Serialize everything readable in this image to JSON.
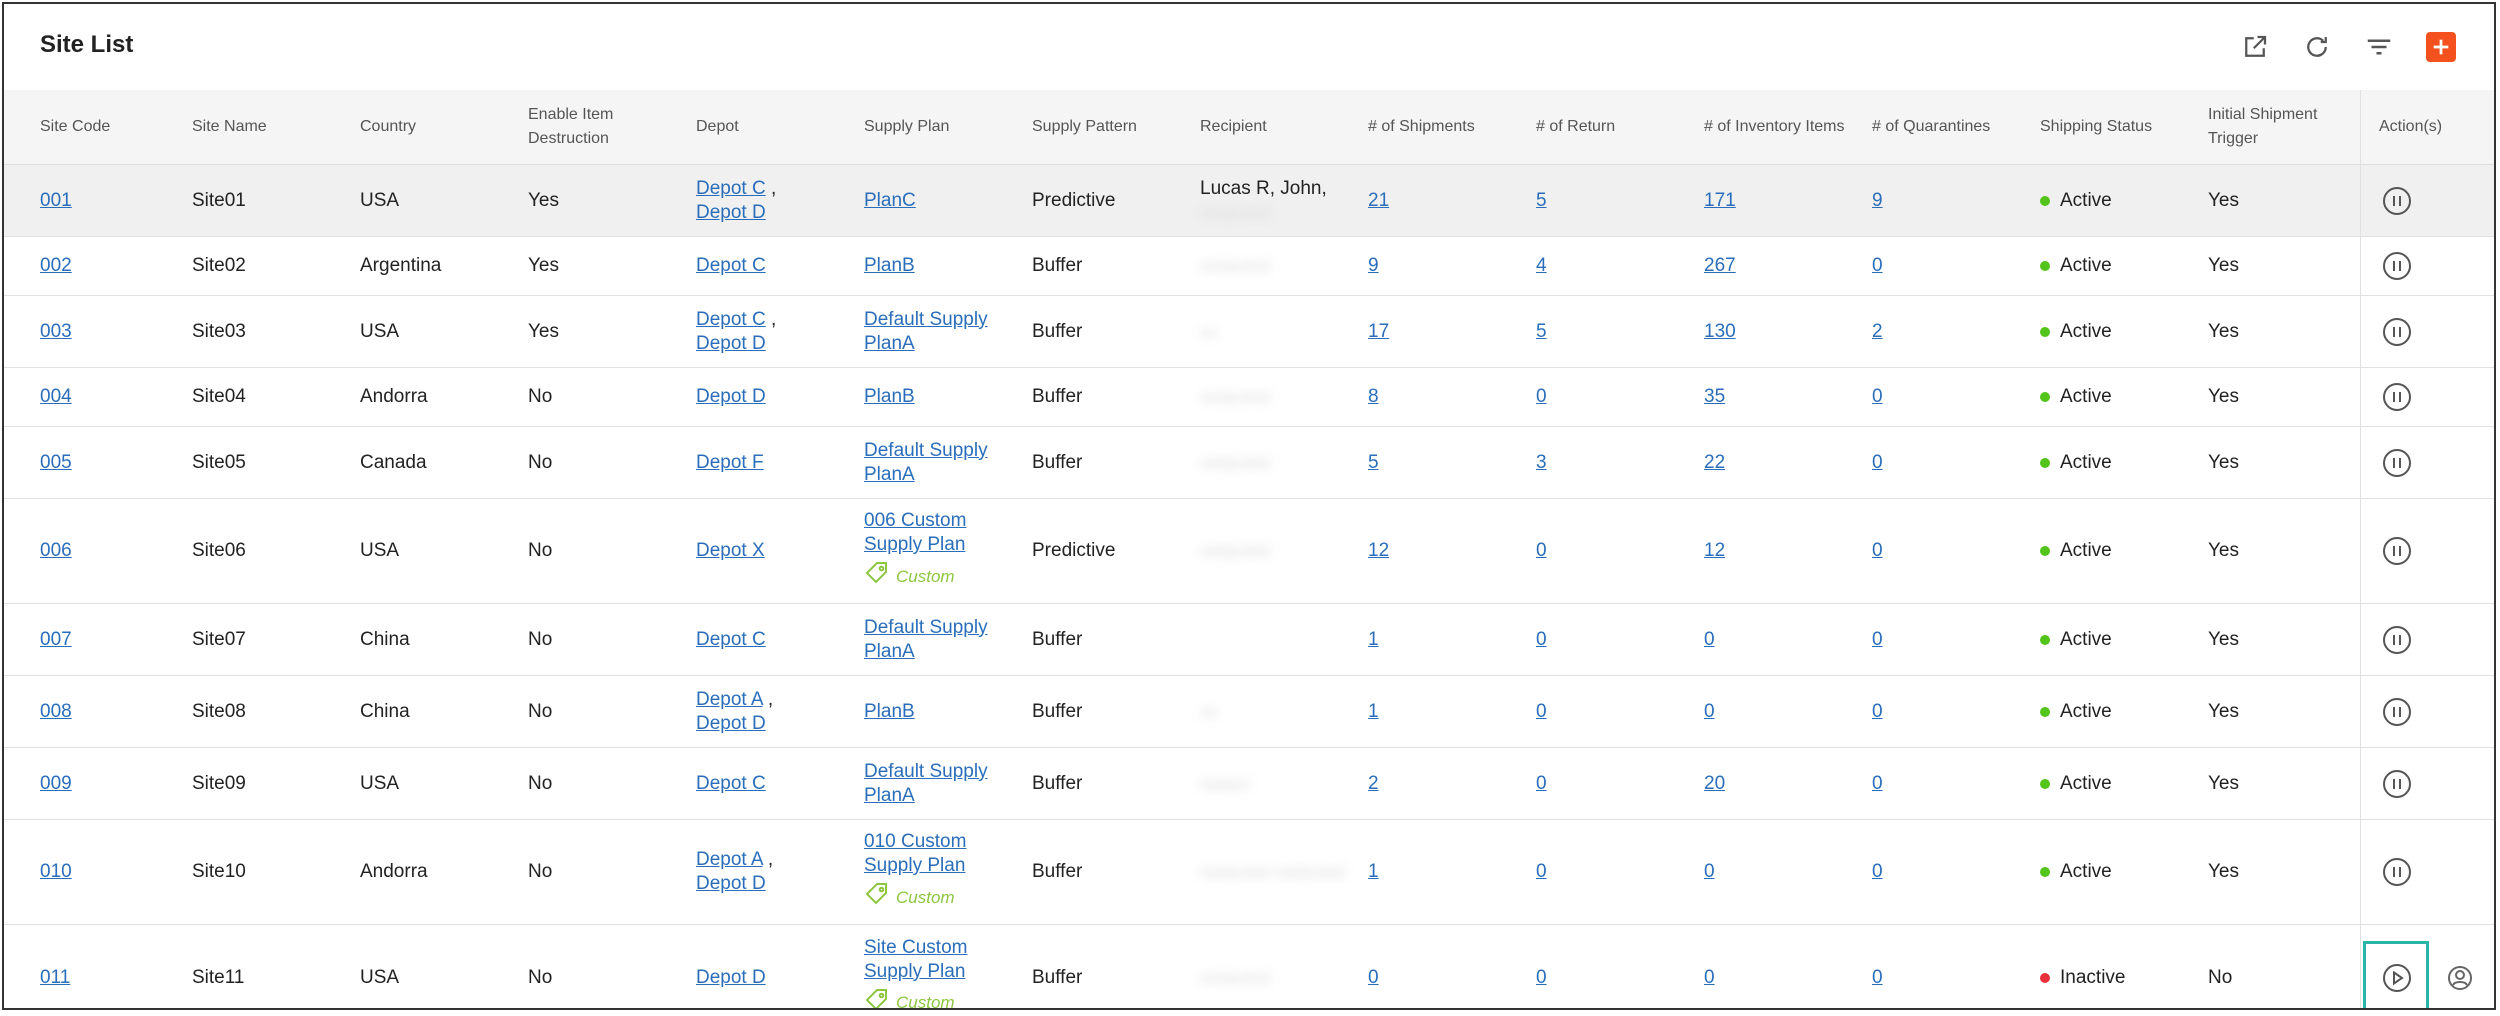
{
  "page": {
    "title": "Site List"
  },
  "toolbar": {
    "icons": [
      "open-external-icon",
      "refresh-icon",
      "filter-icon",
      "add-icon"
    ],
    "accent_color": "#f4511e"
  },
  "columns": [
    "Site Code",
    "Site Name",
    "Country",
    "Enable Item Destruction",
    "Depot",
    "Supply Plan",
    "Supply Pattern",
    "Recipient",
    "# of Shipments",
    "# of Return",
    "# of Inventory Items",
    "# of Quarantines",
    "Shipping Status",
    "Initial Shipment Trigger",
    "Action(s)"
  ],
  "rows": [
    {
      "code": "001",
      "name": "Site01",
      "country": "USA",
      "destruction": "Yes",
      "depot1": "Depot C",
      "depot_sep": " ,",
      "depot2": "Depot D",
      "plan1": "PlanC",
      "plan2": "",
      "custom": "",
      "pattern": "Predictive",
      "recipient": "Lucas R, John,",
      "recipient_blur": "redacted",
      "shipments": "21",
      "returns": "5",
      "inventory": "171",
      "quarantines": "9",
      "status": "Active",
      "trigger": "Yes",
      "action_icon": "pause-icon"
    },
    {
      "code": "002",
      "name": "Site02",
      "country": "Argentina",
      "destruction": "Yes",
      "depot1": "Depot C",
      "depot_sep": "",
      "depot2": "",
      "plan1": "PlanB",
      "plan2": "",
      "custom": "",
      "pattern": "Buffer",
      "recipient": "",
      "recipient_blur": "redacted",
      "shipments": "9",
      "returns": "4",
      "inventory": "267",
      "quarantines": "0",
      "status": "Active",
      "trigger": "Yes",
      "action_icon": "pause-icon"
    },
    {
      "code": "003",
      "name": "Site03",
      "country": "USA",
      "destruction": "Yes",
      "depot1": "Depot C",
      "depot_sep": " ,",
      "depot2": "Depot D",
      "plan1": "Default Supply",
      "plan2": "PlanA",
      "custom": "",
      "pattern": "Buffer",
      "recipient": "",
      "recipient_blur": "xx",
      "shipments": "17",
      "returns": "5",
      "inventory": "130",
      "quarantines": "2",
      "status": "Active",
      "trigger": "Yes",
      "action_icon": "pause-icon"
    },
    {
      "code": "004",
      "name": "Site04",
      "country": "Andorra",
      "destruction": "No",
      "depot1": "Depot D",
      "depot_sep": "",
      "depot2": "",
      "plan1": "PlanB",
      "plan2": "",
      "custom": "",
      "pattern": "Buffer",
      "recipient": "",
      "recipient_blur": "redacted",
      "shipments": "8",
      "returns": "0",
      "inventory": "35",
      "quarantines": "0",
      "status": "Active",
      "trigger": "Yes",
      "action_icon": "pause-icon"
    },
    {
      "code": "005",
      "name": "Site05",
      "country": "Canada",
      "destruction": "No",
      "depot1": "Depot F",
      "depot_sep": "",
      "depot2": "",
      "plan1": "Default Supply",
      "plan2": "PlanA",
      "custom": "",
      "pattern": "Buffer",
      "recipient": "",
      "recipient_blur": "redacted",
      "shipments": "5",
      "returns": "3",
      "inventory": "22",
      "quarantines": "0",
      "status": "Active",
      "trigger": "Yes",
      "action_icon": "pause-icon"
    },
    {
      "code": "006",
      "name": "Site06",
      "country": "USA",
      "destruction": "No",
      "depot1": "Depot X",
      "depot_sep": "",
      "depot2": "",
      "plan1": "006 Custom",
      "plan2": "Supply Plan",
      "custom": "Custom",
      "pattern": "Predictive",
      "recipient": "",
      "recipient_blur": "redacted",
      "shipments": "12",
      "returns": "0",
      "inventory": "12",
      "quarantines": "0",
      "status": "Active",
      "trigger": "Yes",
      "action_icon": "pause-icon"
    },
    {
      "code": "007",
      "name": "Site07",
      "country": "China",
      "destruction": "No",
      "depot1": "Depot C",
      "depot_sep": "",
      "depot2": "",
      "plan1": "Default Supply",
      "plan2": "PlanA",
      "custom": "",
      "pattern": "Buffer",
      "recipient": "",
      "recipient_blur": "",
      "shipments": "1",
      "returns": "0",
      "inventory": "0",
      "quarantines": "0",
      "status": "Active",
      "trigger": "Yes",
      "action_icon": "pause-icon"
    },
    {
      "code": "008",
      "name": "Site08",
      "country": "China",
      "destruction": "No",
      "depot1": "Depot A",
      "depot_sep": " ,",
      "depot2": "Depot D",
      "plan1": "PlanB",
      "plan2": "",
      "custom": "",
      "pattern": "Buffer",
      "recipient": "",
      "recipient_blur": "xx",
      "shipments": "1",
      "returns": "0",
      "inventory": "0",
      "quarantines": "0",
      "status": "Active",
      "trigger": "Yes",
      "action_icon": "pause-icon"
    },
    {
      "code": "009",
      "name": "Site09",
      "country": "USA",
      "destruction": "No",
      "depot1": "Depot C",
      "depot_sep": "",
      "depot2": "",
      "plan1": "Default Supply",
      "plan2": "PlanA",
      "custom": "",
      "pattern": "Buffer",
      "recipient": "",
      "recipient_blur": "redact",
      "shipments": "2",
      "returns": "0",
      "inventory": "20",
      "quarantines": "0",
      "status": "Active",
      "trigger": "Yes",
      "action_icon": "pause-icon"
    },
    {
      "code": "010",
      "name": "Site10",
      "country": "Andorra",
      "destruction": "No",
      "depot1": "Depot A",
      "depot_sep": " ,",
      "depot2": "Depot D",
      "plan1": "010 Custom",
      "plan2": "Supply Plan",
      "custom": "Custom",
      "pattern": "Buffer",
      "recipient": "",
      "recipient_blur": "redacted redacted",
      "shipments": "1",
      "returns": "0",
      "inventory": "0",
      "quarantines": "0",
      "status": "Active",
      "trigger": "Yes",
      "action_icon": "pause-icon"
    },
    {
      "code": "011",
      "name": "Site11",
      "country": "USA",
      "destruction": "No",
      "depot1": "Depot D",
      "depot_sep": "",
      "depot2": "",
      "plan1": "Site Custom",
      "plan2": "Supply Plan",
      "custom": "Custom",
      "pattern": "Buffer",
      "recipient": "",
      "recipient_blur": "redacted",
      "shipments": "0",
      "returns": "0",
      "inventory": "0",
      "quarantines": "0",
      "status": "Inactive",
      "trigger": "No",
      "action_icon": "play-icon"
    }
  ],
  "colors": {
    "active": "#52c41a",
    "inactive": "#e8303a",
    "link": "#2a6ebb",
    "custom_tag": "#8dc63f",
    "highlight": "#2bb5a8"
  }
}
